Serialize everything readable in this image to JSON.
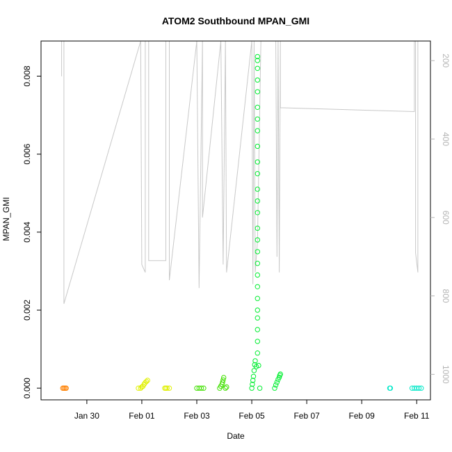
{
  "chart_data": {
    "type": "scatter",
    "title": "ATOM2 Southbound MPAN_GMI",
    "xlabel": "Date",
    "ylabel": "MPAN_GMI",
    "x_axis": {
      "unit": "date",
      "range": [
        "2026-01-28T08:00",
        "2026-02-11T12:00"
      ],
      "ticks": [
        {
          "date": "2026-01-30",
          "label": "Jan 30"
        },
        {
          "date": "2026-02-01",
          "label": "Feb 01"
        },
        {
          "date": "2026-02-03",
          "label": "Feb 03"
        },
        {
          "date": "2026-02-05",
          "label": "Feb 05"
        },
        {
          "date": "2026-02-07",
          "label": "Feb 07"
        },
        {
          "date": "2026-02-09",
          "label": "Feb 09"
        },
        {
          "date": "2026-02-11",
          "label": "Feb 11"
        }
      ]
    },
    "y_axis": {
      "range": [
        -0.0003,
        0.0089
      ],
      "ticks": [
        {
          "value": 0.0,
          "label": "0.000"
        },
        {
          "value": 0.002,
          "label": "0.002"
        },
        {
          "value": 0.004,
          "label": "0.004"
        },
        {
          "value": 0.006,
          "label": "0.006"
        },
        {
          "value": 0.008,
          "label": "0.008"
        }
      ]
    },
    "y2_axis": {
      "reversed": true,
      "range": [
        1065,
        150
      ],
      "ticks": [
        {
          "value": 200,
          "label": "200"
        },
        {
          "value": 400,
          "label": "400"
        },
        {
          "value": 600,
          "label": "600"
        },
        {
          "value": 800,
          "label": "800"
        },
        {
          "value": 1000,
          "label": "1000"
        }
      ],
      "color": "#b4b4b4"
    },
    "grid": false,
    "legend": "none",
    "series": [
      {
        "color": "#ff8000",
        "points": [
          {
            "x": "2026-01-29T03:00",
            "y": 0.0
          },
          {
            "x": "2026-01-29T04:00",
            "y": 0.0
          },
          {
            "x": "2026-01-29T05:00",
            "y": 0.0
          },
          {
            "x": "2026-01-29T06:00",
            "y": 0.0
          }
        ]
      },
      {
        "color": "#e0f000",
        "points": [
          {
            "x": "2026-01-31T21:00",
            "y": 0.0
          },
          {
            "x": "2026-01-31T23:00",
            "y": 0.0
          },
          {
            "x": "2026-02-01T00:00",
            "y": 3e-05
          },
          {
            "x": "2026-02-01T01:00",
            "y": 5e-05
          },
          {
            "x": "2026-02-01T02:00",
            "y": 0.0001
          },
          {
            "x": "2026-02-01T03:00",
            "y": 0.00014
          },
          {
            "x": "2026-02-01T04:00",
            "y": 0.00017
          },
          {
            "x": "2026-02-01T05:00",
            "y": 0.0002
          },
          {
            "x": "2026-02-01T20:00",
            "y": 0.0
          },
          {
            "x": "2026-02-01T21:00",
            "y": 0.0
          },
          {
            "x": "2026-02-01T22:00",
            "y": 0.0
          },
          {
            "x": "2026-02-02T00:00",
            "y": 0.0
          }
        ]
      },
      {
        "color": "#40e000",
        "points": [
          {
            "x": "2026-02-03T00:00",
            "y": 0.0
          },
          {
            "x": "2026-02-03T02:00",
            "y": 0.0
          },
          {
            "x": "2026-02-03T04:00",
            "y": 0.0
          },
          {
            "x": "2026-02-03T06:00",
            "y": 0.0
          },
          {
            "x": "2026-02-03T20:00",
            "y": 0.0
          },
          {
            "x": "2026-02-03T21:00",
            "y": 5e-05
          },
          {
            "x": "2026-02-03T22:00",
            "y": 0.0001
          },
          {
            "x": "2026-02-03T22:30",
            "y": 0.00015
          },
          {
            "x": "2026-02-03T23:00",
            "y": 0.00021
          },
          {
            "x": "2026-02-03T23:30",
            "y": 0.00027
          },
          {
            "x": "2026-02-04T01:00",
            "y": 0.0
          },
          {
            "x": "2026-02-04T02:00",
            "y": 3e-05
          }
        ]
      },
      {
        "color": "#00ee30",
        "points": [
          {
            "x": "2026-02-05T00:00",
            "y": 0.0
          },
          {
            "x": "2026-02-05T00:30",
            "y": 0.0001
          },
          {
            "x": "2026-02-05T01:00",
            "y": 0.0002
          },
          {
            "x": "2026-02-05T01:30",
            "y": 0.0003
          },
          {
            "x": "2026-02-05T02:00",
            "y": 0.00045
          },
          {
            "x": "2026-02-05T02:30",
            "y": 0.0006
          },
          {
            "x": "2026-02-05T03:00",
            "y": 0.0007
          },
          {
            "x": "2026-02-05T04:00",
            "y": 0.00055
          },
          {
            "x": "2026-02-05T05:00",
            "y": 0.0009
          },
          {
            "x": "2026-02-05T05:00",
            "y": 0.0012
          },
          {
            "x": "2026-02-05T05:00",
            "y": 0.0015
          },
          {
            "x": "2026-02-05T05:00",
            "y": 0.0018
          },
          {
            "x": "2026-02-05T05:00",
            "y": 0.002
          },
          {
            "x": "2026-02-05T05:00",
            "y": 0.0023
          },
          {
            "x": "2026-02-05T05:00",
            "y": 0.0026
          },
          {
            "x": "2026-02-05T05:00",
            "y": 0.0029
          },
          {
            "x": "2026-02-05T05:00",
            "y": 0.0032
          },
          {
            "x": "2026-02-05T05:00",
            "y": 0.0035
          },
          {
            "x": "2026-02-05T05:00",
            "y": 0.0038
          },
          {
            "x": "2026-02-05T05:00",
            "y": 0.0041
          },
          {
            "x": "2026-02-05T05:00",
            "y": 0.0045
          },
          {
            "x": "2026-02-05T05:00",
            "y": 0.0048
          },
          {
            "x": "2026-02-05T05:00",
            "y": 0.0051
          },
          {
            "x": "2026-02-05T05:00",
            "y": 0.0055
          },
          {
            "x": "2026-02-05T05:00",
            "y": 0.0058
          },
          {
            "x": "2026-02-05T05:00",
            "y": 0.0062
          },
          {
            "x": "2026-02-05T05:00",
            "y": 0.0066
          },
          {
            "x": "2026-02-05T05:00",
            "y": 0.0069
          },
          {
            "x": "2026-02-05T05:00",
            "y": 0.0072
          },
          {
            "x": "2026-02-05T05:00",
            "y": 0.0076
          },
          {
            "x": "2026-02-05T05:00",
            "y": 0.0079
          },
          {
            "x": "2026-02-05T05:00",
            "y": 0.0082
          },
          {
            "x": "2026-02-05T05:00",
            "y": 0.0084
          },
          {
            "x": "2026-02-05T05:00",
            "y": 0.0085
          },
          {
            "x": "2026-02-05T06:00",
            "y": 0.00058
          },
          {
            "x": "2026-02-05T07:00",
            "y": 0.0
          },
          {
            "x": "2026-02-05T20:00",
            "y": 0.0
          },
          {
            "x": "2026-02-05T21:00",
            "y": 8e-05
          },
          {
            "x": "2026-02-05T22:00",
            "y": 0.00015
          },
          {
            "x": "2026-02-05T23:00",
            "y": 0.00022
          },
          {
            "x": "2026-02-06T00:00",
            "y": 0.00028
          },
          {
            "x": "2026-02-06T00:30",
            "y": 0.00033
          },
          {
            "x": "2026-02-06T01:00",
            "y": 0.00036
          }
        ]
      },
      {
        "color": "#00e8c8",
        "points": [
          {
            "x": "2026-02-10T00:30",
            "y": 0.0
          },
          {
            "x": "2026-02-10T01:00",
            "y": 0.0
          },
          {
            "x": "2026-02-10T20:00",
            "y": 0.0
          },
          {
            "x": "2026-02-10T22:00",
            "y": 0.0
          },
          {
            "x": "2026-02-11T00:00",
            "y": 0.0
          },
          {
            "x": "2026-02-11T02:00",
            "y": 0.0
          },
          {
            "x": "2026-02-11T04:00",
            "y": 0.0
          }
        ]
      }
    ],
    "depth_trace": {
      "axis": "y2",
      "color": "#c8c8c8",
      "points": [
        {
          "x": "2026-01-29T02:00",
          "y": 240
        },
        {
          "x": "2026-01-29T02:00",
          "y": 150
        },
        {
          "x": "2026-01-29T04:00",
          "y": 150
        },
        {
          "x": "2026-01-29T04:00",
          "y": 820
        },
        {
          "x": "2026-01-31T23:00",
          "y": 150
        },
        {
          "x": "2026-02-01T00:00",
          "y": 720
        },
        {
          "x": "2026-02-01T03:00",
          "y": 740
        },
        {
          "x": "2026-02-01T03:00",
          "y": 150
        },
        {
          "x": "2026-02-01T06:00",
          "y": 150
        },
        {
          "x": "2026-02-01T06:00",
          "y": 710
        },
        {
          "x": "2026-02-01T21:00",
          "y": 710
        },
        {
          "x": "2026-02-01T21:00",
          "y": 150
        },
        {
          "x": "2026-02-02T00:00",
          "y": 150
        },
        {
          "x": "2026-02-02T00:00",
          "y": 760
        },
        {
          "x": "2026-02-03T00:00",
          "y": 150
        },
        {
          "x": "2026-02-03T02:00",
          "y": 780
        },
        {
          "x": "2026-02-03T05:00",
          "y": 150
        },
        {
          "x": "2026-02-03T05:00",
          "y": 600
        },
        {
          "x": "2026-02-03T21:00",
          "y": 150
        },
        {
          "x": "2026-02-03T23:00",
          "y": 720
        },
        {
          "x": "2026-02-04T01:00",
          "y": 150
        },
        {
          "x": "2026-02-04T02:00",
          "y": 740
        },
        {
          "x": "2026-02-05T00:00",
          "y": 150
        },
        {
          "x": "2026-02-05T01:00",
          "y": 770
        },
        {
          "x": "2026-02-05T02:00",
          "y": 150
        },
        {
          "x": "2026-02-05T03:00",
          "y": 740
        },
        {
          "x": "2026-02-05T05:00",
          "y": 660
        },
        {
          "x": "2026-02-05T08:00",
          "y": 150
        },
        {
          "x": "2026-02-05T21:00",
          "y": 150
        },
        {
          "x": "2026-02-05T22:00",
          "y": 700
        },
        {
          "x": "2026-02-05T23:00",
          "y": 150
        },
        {
          "x": "2026-02-06T00:00",
          "y": 740
        },
        {
          "x": "2026-02-06T01:00",
          "y": 150
        },
        {
          "x": "2026-02-06T01:00",
          "y": 320
        },
        {
          "x": "2026-02-10T22:00",
          "y": 330
        },
        {
          "x": "2026-02-10T22:00",
          "y": 150
        },
        {
          "x": "2026-02-10T23:00",
          "y": 150
        },
        {
          "x": "2026-02-10T23:00",
          "y": 690
        },
        {
          "x": "2026-02-11T01:00",
          "y": 740
        },
        {
          "x": "2026-02-11T01:00",
          "y": 150
        }
      ]
    }
  }
}
